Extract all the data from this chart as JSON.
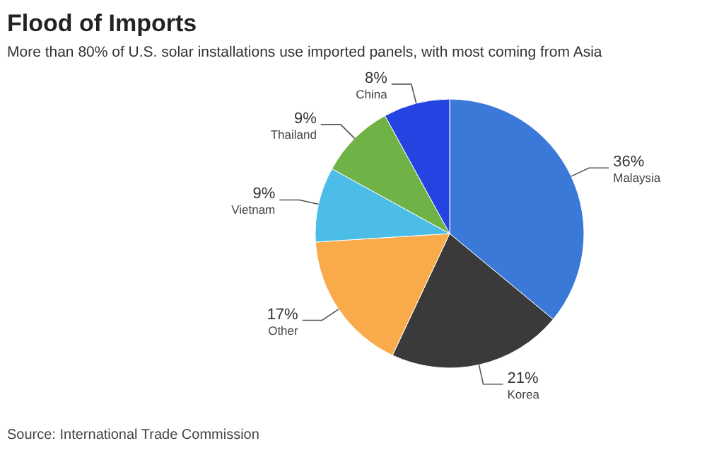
{
  "chart_data": {
    "type": "pie",
    "title": "Flood of Imports",
    "subtitle": "More than 80% of U.S. solar installations use imported panels, with most coming from Asia",
    "categories": [
      "Malaysia",
      "Korea",
      "Other",
      "Vietnam",
      "Thailand",
      "China"
    ],
    "values": [
      36,
      21,
      17,
      9,
      9,
      8
    ],
    "value_labels": [
      "36%",
      "21%",
      "17%",
      "9%",
      "9%",
      "8%"
    ],
    "colors": [
      "#3b79d9",
      "#3a3a3a",
      "#f9aa4a",
      "#4cbde6",
      "#6fb246",
      "#2443e0"
    ],
    "annotations": [
      "Source: International Trade Commission"
    ]
  }
}
